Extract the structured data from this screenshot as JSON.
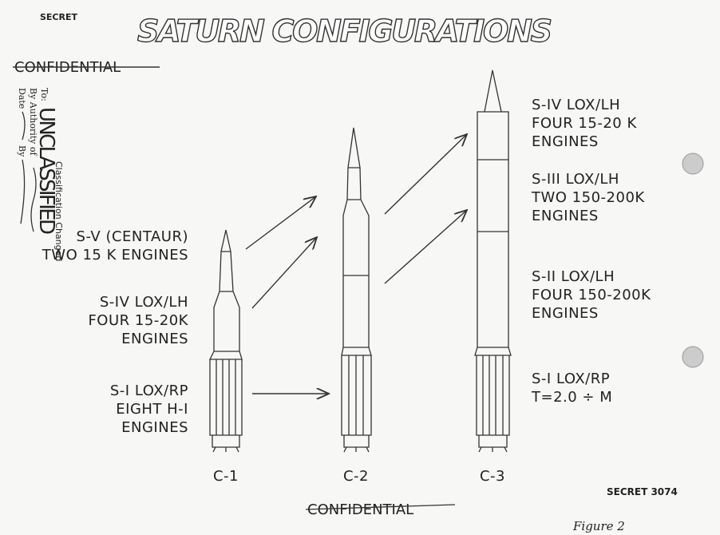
{
  "header": {
    "classification": "SECRET",
    "title": "SATURN CONFIGURATIONS",
    "strikeout": "CONFIDENTIAL"
  },
  "stamp": {
    "line1": "Classification Changed",
    "to": "To:",
    "status": "UNCLASSIFIED",
    "authority": "By Authority of",
    "date": "Date",
    "by": "By"
  },
  "left_labels": [
    {
      "lines": [
        "S-V (CENTAUR)",
        "TWO 15 K ENGINES"
      ]
    },
    {
      "lines": [
        "S-IV LOX/LH",
        "FOUR 15-20K",
        "ENGINES"
      ]
    },
    {
      "lines": [
        "S-I LOX/RP",
        "EIGHT H-I",
        "ENGINES"
      ]
    }
  ],
  "right_labels": [
    {
      "lines": [
        "S-IV LOX/LH",
        "FOUR 15-20 K",
        "ENGINES"
      ]
    },
    {
      "lines": [
        "S-III LOX/LH",
        "TWO 150-200K",
        "ENGINES"
      ]
    },
    {
      "lines": [
        "S-II LOX/LH",
        "FOUR 150-200K",
        "ENGINES"
      ]
    },
    {
      "lines": [
        "S-I LOX/RP",
        "T=2.0 ÷ M"
      ]
    }
  ],
  "vehicles": [
    "C-1",
    "C-2",
    "C-3"
  ],
  "footer": {
    "code": "SECRET 3074",
    "classification": "CONFIDENTIAL",
    "figure": "Figure 2"
  }
}
